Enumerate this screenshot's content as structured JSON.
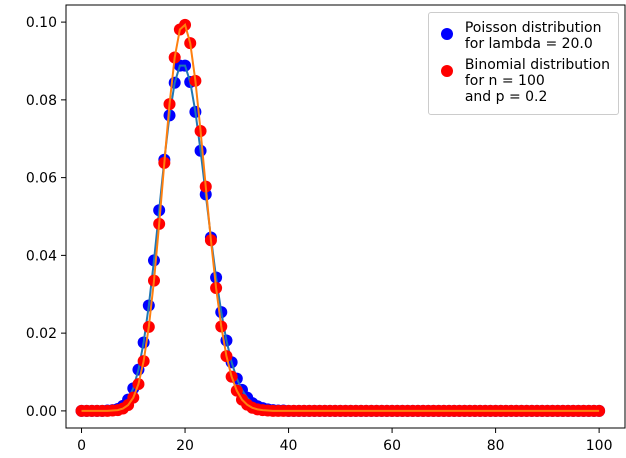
{
  "chart_data": {
    "type": "scatter",
    "x": [
      0,
      1,
      2,
      3,
      4,
      5,
      6,
      7,
      8,
      9,
      10,
      11,
      12,
      13,
      14,
      15,
      16,
      17,
      18,
      19,
      20,
      21,
      22,
      23,
      24,
      25,
      26,
      27,
      28,
      29,
      30,
      31,
      32,
      33,
      34,
      35,
      36,
      37,
      38,
      39,
      40,
      41,
      42,
      43,
      44,
      45,
      46,
      47,
      48,
      49,
      50,
      51,
      52,
      53,
      54,
      55,
      56,
      57,
      58,
      59,
      60,
      61,
      62,
      63,
      64,
      65,
      66,
      67,
      68,
      69,
      70,
      71,
      72,
      73,
      74,
      75,
      76,
      77,
      78,
      79,
      80,
      81,
      82,
      83,
      84,
      85,
      86,
      87,
      88,
      89,
      90,
      91,
      92,
      93,
      94,
      95,
      96,
      97,
      98,
      99,
      100
    ],
    "series": [
      {
        "name": "Poisson distribution\nfor lambda = 20.0",
        "color": "#0000ff",
        "line_color": "#1f77b4",
        "values": [
          0,
          0,
          0,
          0,
          0,
          0.0001,
          0.0002,
          0.0005,
          0.0013,
          0.0029,
          0.0058,
          0.0106,
          0.0176,
          0.0271,
          0.0387,
          0.0516,
          0.0646,
          0.076,
          0.0844,
          0.0888,
          0.0888,
          0.0846,
          0.0769,
          0.0669,
          0.0557,
          0.0446,
          0.0343,
          0.0254,
          0.0181,
          0.0125,
          0.0083,
          0.0054,
          0.0034,
          0.002,
          0.0012,
          0.0007,
          0.0004,
          0.0002,
          0.0001,
          0.0001,
          0,
          0,
          0,
          0,
          0,
          0,
          0,
          0,
          0,
          0,
          0,
          0,
          0,
          0,
          0,
          0,
          0,
          0,
          0,
          0,
          0,
          0,
          0,
          0,
          0,
          0,
          0,
          0,
          0,
          0,
          0,
          0,
          0,
          0,
          0,
          0,
          0,
          0,
          0,
          0,
          0,
          0,
          0,
          0,
          0,
          0,
          0,
          0,
          0,
          0,
          0,
          0,
          0,
          0,
          0,
          0,
          0,
          0,
          0,
          0,
          0
        ]
      },
      {
        "name": "Binomial distribution\nfor n = 100\nand p = 0.2",
        "color": "#ff0000",
        "line_color": "#ff7f0e",
        "values": [
          0,
          0,
          0,
          0,
          0,
          0,
          0.0001,
          0.0002,
          0.0006,
          0.0015,
          0.0034,
          0.0069,
          0.0128,
          0.0216,
          0.0335,
          0.0481,
          0.0638,
          0.0789,
          0.0909,
          0.0981,
          0.0993,
          0.0946,
          0.0849,
          0.072,
          0.0577,
          0.0439,
          0.0316,
          0.0217,
          0.0141,
          0.0088,
          0.0052,
          0.0029,
          0.0016,
          0.0008,
          0.0004,
          0.0002,
          0.0001,
          0,
          0,
          0,
          0,
          0,
          0,
          0,
          0,
          0,
          0,
          0,
          0,
          0,
          0,
          0,
          0,
          0,
          0,
          0,
          0,
          0,
          0,
          0,
          0,
          0,
          0,
          0,
          0,
          0,
          0,
          0,
          0,
          0,
          0,
          0,
          0,
          0,
          0,
          0,
          0,
          0,
          0,
          0,
          0,
          0,
          0,
          0,
          0,
          0,
          0,
          0,
          0,
          0,
          0,
          0,
          0,
          0,
          0,
          0,
          0,
          0,
          0,
          0,
          0
        ]
      }
    ],
    "xlim": [
      -3,
      105
    ],
    "xticks": [
      0,
      20,
      40,
      60,
      80,
      100
    ],
    "ylim": [
      -0.0044,
      0.1044
    ],
    "yticks": [
      {
        "value": 0,
        "label": "0.00"
      },
      {
        "value": 0.02,
        "label": "0.02"
      },
      {
        "value": 0.04,
        "label": "0.04"
      },
      {
        "value": 0.06,
        "label": "0.06"
      },
      {
        "value": 0.08,
        "label": "0.08"
      },
      {
        "value": 0.1,
        "label": "0.10"
      }
    ],
    "legend": "upper right"
  }
}
